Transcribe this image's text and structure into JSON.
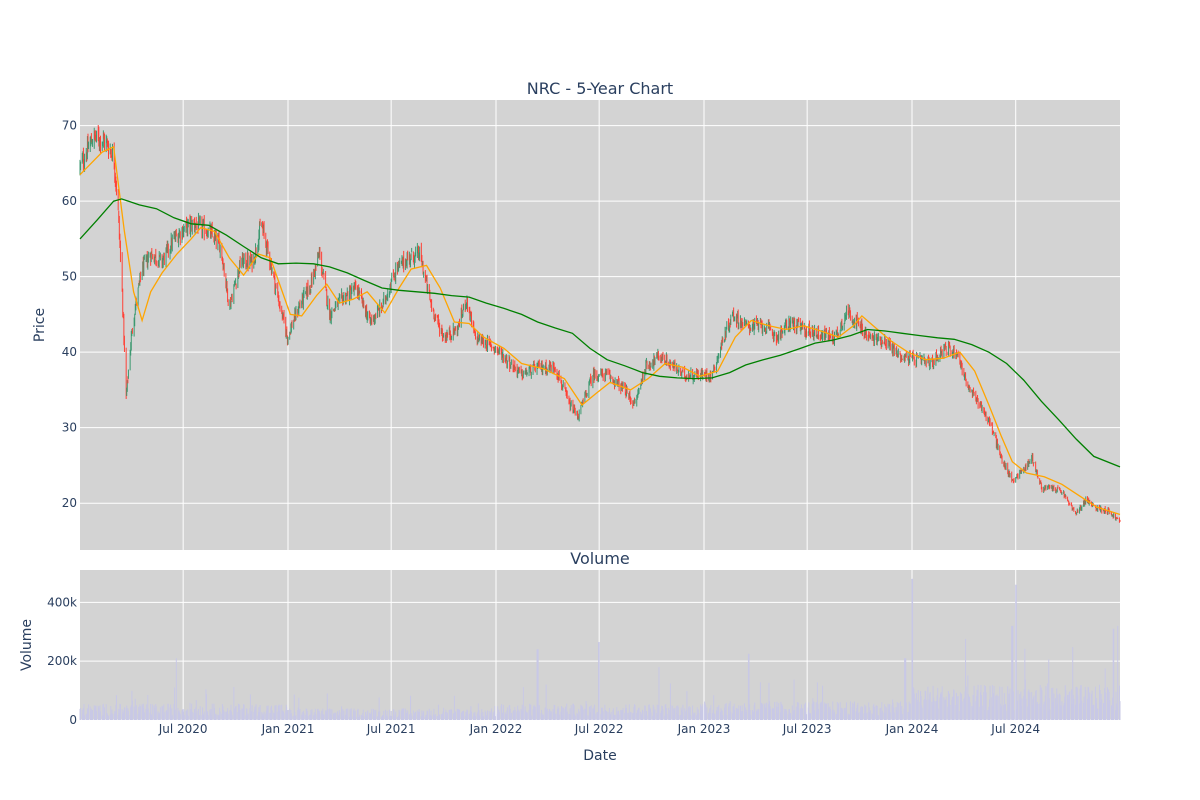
{
  "chart_data": [
    {
      "type": "candlestick",
      "title": "NRC - 5-Year Chart",
      "ylabel": "Price",
      "ylim": [
        13.8,
        73.4
      ],
      "yticks": [
        "20",
        "30",
        "40",
        "50",
        "60",
        "70"
      ],
      "grid": true,
      "colors": {
        "background": "#d3d3d3",
        "up": "#3d9970",
        "down": "#ff4136",
        "ma_short": "#ffa500",
        "ma_long": "#008000"
      },
      "price_path": [
        [
          "2020-01-02",
          64.5
        ],
        [
          "2020-01-25",
          68.5
        ],
        [
          "2020-02-15",
          68.0
        ],
        [
          "2020-03-01",
          66.0
        ],
        [
          "2020-03-08",
          60.0
        ],
        [
          "2020-03-16",
          48.0
        ],
        [
          "2020-03-23",
          34.0
        ],
        [
          "2020-04-01",
          42.0
        ],
        [
          "2020-04-08",
          46.0
        ],
        [
          "2020-04-20",
          51.0
        ],
        [
          "2020-05-05",
          53.0
        ],
        [
          "2020-05-25",
          52.0
        ],
        [
          "2020-06-15",
          55.0
        ],
        [
          "2020-07-05",
          56.5
        ],
        [
          "2020-07-20",
          57.0
        ],
        [
          "2020-08-15",
          56.0
        ],
        [
          "2020-09-05",
          54.0
        ],
        [
          "2020-09-20",
          46.0
        ],
        [
          "2020-10-10",
          52.0
        ],
        [
          "2020-11-01",
          52.0
        ],
        [
          "2020-11-15",
          57.0
        ],
        [
          "2020-12-01",
          52.0
        ],
        [
          "2020-12-15",
          47.0
        ],
        [
          "2020-12-31",
          42.0
        ],
        [
          "2021-01-20",
          46.0
        ],
        [
          "2021-02-10",
          49.0
        ],
        [
          "2021-02-25",
          53.0
        ],
        [
          "2021-03-15",
          45.0
        ],
        [
          "2021-04-05",
          47.0
        ],
        [
          "2021-05-01",
          48.5
        ],
        [
          "2021-05-25",
          44.0
        ],
        [
          "2021-06-15",
          46.0
        ],
        [
          "2021-07-10",
          51.0
        ],
        [
          "2021-08-01",
          52.5
        ],
        [
          "2021-08-20",
          53.0
        ],
        [
          "2021-09-10",
          46.0
        ],
        [
          "2021-10-01",
          42.0
        ],
        [
          "2021-10-25",
          43.0
        ],
        [
          "2021-11-10",
          47.0
        ],
        [
          "2021-11-25",
          42.0
        ],
        [
          "2022-01-01",
          40.5
        ],
        [
          "2022-01-20",
          39.0
        ],
        [
          "2022-02-15",
          37.0
        ],
        [
          "2022-03-15",
          38.0
        ],
        [
          "2022-04-15",
          38.0
        ],
        [
          "2022-05-10",
          33.0
        ],
        [
          "2022-05-25",
          31.5
        ],
        [
          "2022-06-20",
          37.0
        ],
        [
          "2022-07-15",
          37.0
        ],
        [
          "2022-08-15",
          35.0
        ],
        [
          "2022-09-01",
          33.0
        ],
        [
          "2022-09-20",
          38.0
        ],
        [
          "2022-10-15",
          39.5
        ],
        [
          "2022-11-10",
          38.0
        ],
        [
          "2022-11-25",
          37.0
        ],
        [
          "2022-12-15",
          37.0
        ],
        [
          "2023-01-15",
          37.0
        ],
        [
          "2023-02-05",
          42.0
        ],
        [
          "2023-02-20",
          45.0
        ],
        [
          "2023-03-15",
          43.5
        ],
        [
          "2023-04-15",
          43.5
        ],
        [
          "2023-05-10",
          42.0
        ],
        [
          "2023-06-01",
          44.0
        ],
        [
          "2023-06-25",
          43.0
        ],
        [
          "2023-07-20",
          42.5
        ],
        [
          "2023-08-20",
          42.0
        ],
        [
          "2023-09-10",
          45.5
        ],
        [
          "2023-09-25",
          44.0
        ],
        [
          "2023-10-15",
          42.0
        ],
        [
          "2023-11-15",
          41.5
        ],
        [
          "2023-12-10",
          39.5
        ],
        [
          "2024-01-10",
          39.0
        ],
        [
          "2024-02-05",
          38.5
        ],
        [
          "2024-02-25",
          40.5
        ],
        [
          "2024-03-20",
          40.0
        ],
        [
          "2024-04-10",
          35.0
        ],
        [
          "2024-05-01",
          33.0
        ],
        [
          "2024-05-20",
          30.0
        ],
        [
          "2024-06-05",
          26.0
        ],
        [
          "2024-06-25",
          23.0
        ],
        [
          "2024-07-15",
          24.5
        ],
        [
          "2024-07-30",
          26.0
        ],
        [
          "2024-08-15",
          22.0
        ],
        [
          "2024-09-05",
          22.0
        ],
        [
          "2024-09-20",
          21.5
        ],
        [
          "2024-10-15",
          18.5
        ],
        [
          "2024-11-01",
          20.5
        ],
        [
          "2024-11-15",
          19.5
        ],
        [
          "2024-12-10",
          19.0
        ],
        [
          "2024-12-31",
          17.5
        ]
      ],
      "series": [
        {
          "type": "moving-average-short",
          "color": "#ffa500",
          "points": [
            [
              "2020-01-02",
              63.5
            ],
            [
              "2020-02-10",
              66.5
            ],
            [
              "2020-03-01",
              67.2
            ],
            [
              "2020-03-20",
              56.0
            ],
            [
              "2020-04-05",
              48.0
            ],
            [
              "2020-04-20",
              44.2
            ],
            [
              "2020-05-05",
              48.0
            ],
            [
              "2020-05-25",
              50.5
            ],
            [
              "2020-06-20",
              53.0
            ],
            [
              "2020-07-15",
              55.0
            ],
            [
              "2020-08-01",
              56.5
            ],
            [
              "2020-08-25",
              56.0
            ],
            [
              "2020-09-20",
              52.5
            ],
            [
              "2020-10-15",
              50.2
            ],
            [
              "2020-11-10",
              53.0
            ],
            [
              "2020-12-01",
              52.5
            ],
            [
              "2021-01-05",
              45.0
            ],
            [
              "2021-01-25",
              44.8
            ],
            [
              "2021-02-20",
              47.5
            ],
            [
              "2021-03-10",
              49.0
            ],
            [
              "2021-04-01",
              46.5
            ],
            [
              "2021-04-25",
              47.0
            ],
            [
              "2021-05-20",
              48.0
            ],
            [
              "2021-06-20",
              45.2
            ],
            [
              "2021-07-15",
              48.5
            ],
            [
              "2021-08-05",
              51.0
            ],
            [
              "2021-09-01",
              51.5
            ],
            [
              "2021-09-25",
              48.5
            ],
            [
              "2021-10-20",
              44.0
            ],
            [
              "2021-11-15",
              43.8
            ],
            [
              "2021-12-10",
              42.0
            ],
            [
              "2022-01-15",
              40.5
            ],
            [
              "2022-02-15",
              38.5
            ],
            [
              "2022-03-25",
              37.8
            ],
            [
              "2022-05-01",
              36.5
            ],
            [
              "2022-06-01",
              33.0
            ],
            [
              "2022-06-25",
              34.5
            ],
            [
              "2022-07-20",
              36.0
            ],
            [
              "2022-08-25",
              35.0
            ],
            [
              "2022-09-25",
              36.5
            ],
            [
              "2022-10-25",
              38.5
            ],
            [
              "2022-11-25",
              38.0
            ],
            [
              "2022-12-25",
              36.8
            ],
            [
              "2023-01-25",
              37.5
            ],
            [
              "2023-02-25",
              42.0
            ],
            [
              "2023-03-25",
              44.2
            ],
            [
              "2023-04-25",
              43.5
            ],
            [
              "2023-05-25",
              43.0
            ],
            [
              "2023-06-25",
              43.5
            ],
            [
              "2023-07-25",
              42.8
            ],
            [
              "2023-08-25",
              42.0
            ],
            [
              "2023-09-20",
              43.5
            ],
            [
              "2023-10-05",
              44.8
            ],
            [
              "2023-10-25",
              43.5
            ],
            [
              "2023-11-25",
              41.5
            ],
            [
              "2023-12-25",
              40.0
            ],
            [
              "2024-01-25",
              39.0
            ],
            [
              "2024-02-25",
              39.2
            ],
            [
              "2024-03-25",
              40.0
            ],
            [
              "2024-04-20",
              37.5
            ],
            [
              "2024-05-15",
              33.0
            ],
            [
              "2024-06-05",
              29.0
            ],
            [
              "2024-06-25",
              25.5
            ],
            [
              "2024-07-20",
              24.0
            ],
            [
              "2024-08-20",
              23.5
            ],
            [
              "2024-09-20",
              22.5
            ],
            [
              "2024-10-20",
              21.0
            ],
            [
              "2024-11-20",
              19.5
            ],
            [
              "2024-12-31",
              18.5
            ]
          ]
        },
        {
          "type": "moving-average-long",
          "color": "#008000",
          "points": [
            [
              "2020-01-02",
              55.0
            ],
            [
              "2020-02-01",
              57.5
            ],
            [
              "2020-03-01",
              60.0
            ],
            [
              "2020-03-15",
              60.3
            ],
            [
              "2020-04-15",
              59.5
            ],
            [
              "2020-05-15",
              59.0
            ],
            [
              "2020-06-15",
              57.8
            ],
            [
              "2020-07-15",
              57.0
            ],
            [
              "2020-08-15",
              56.8
            ],
            [
              "2020-09-15",
              55.5
            ],
            [
              "2020-10-15",
              54.0
            ],
            [
              "2020-11-15",
              52.5
            ],
            [
              "2020-12-15",
              51.7
            ],
            [
              "2021-01-15",
              51.8
            ],
            [
              "2021-02-15",
              51.7
            ],
            [
              "2021-03-15",
              51.3
            ],
            [
              "2021-04-15",
              50.5
            ],
            [
              "2021-05-15",
              49.5
            ],
            [
              "2021-06-15",
              48.5
            ],
            [
              "2021-07-15",
              48.2
            ],
            [
              "2021-08-15",
              48.0
            ],
            [
              "2021-09-15",
              47.8
            ],
            [
              "2021-10-15",
              47.5
            ],
            [
              "2021-11-15",
              47.3
            ],
            [
              "2021-12-15",
              46.5
            ],
            [
              "2022-01-15",
              45.8
            ],
            [
              "2022-02-15",
              45.0
            ],
            [
              "2022-03-15",
              44.0
            ],
            [
              "2022-04-15",
              43.2
            ],
            [
              "2022-05-15",
              42.5
            ],
            [
              "2022-06-15",
              40.5
            ],
            [
              "2022-07-15",
              39.0
            ],
            [
              "2022-08-15",
              38.2
            ],
            [
              "2022-09-15",
              37.3
            ],
            [
              "2022-10-15",
              36.8
            ],
            [
              "2022-11-15",
              36.6
            ],
            [
              "2022-12-15",
              36.5
            ],
            [
              "2023-01-15",
              36.6
            ],
            [
              "2023-02-15",
              37.3
            ],
            [
              "2023-03-15",
              38.3
            ],
            [
              "2023-04-15",
              39.0
            ],
            [
              "2023-05-15",
              39.6
            ],
            [
              "2023-06-15",
              40.4
            ],
            [
              "2023-07-15",
              41.2
            ],
            [
              "2023-08-15",
              41.6
            ],
            [
              "2023-09-15",
              42.2
            ],
            [
              "2023-10-15",
              43.0
            ],
            [
              "2023-11-15",
              42.8
            ],
            [
              "2023-12-15",
              42.5
            ],
            [
              "2024-01-15",
              42.2
            ],
            [
              "2024-02-15",
              41.9
            ],
            [
              "2024-03-15",
              41.7
            ],
            [
              "2024-04-15",
              41.0
            ],
            [
              "2024-05-15",
              40.0
            ],
            [
              "2024-06-15",
              38.5
            ],
            [
              "2024-07-15",
              36.3
            ],
            [
              "2024-08-15",
              33.5
            ],
            [
              "2024-09-15",
              31.0
            ],
            [
              "2024-10-15",
              28.5
            ],
            [
              "2024-11-15",
              26.2
            ],
            [
              "2024-12-31",
              24.8
            ]
          ]
        }
      ]
    },
    {
      "type": "bar",
      "title": "Volume",
      "xlabel": "Date",
      "ylabel": "Volume",
      "ylim": [
        0,
        510000
      ],
      "yticks": [
        "0",
        "200k",
        "400k"
      ],
      "color": "#c8c8e6",
      "grid": true,
      "typical_volume_by_year": [
        [
          "2020",
          35000
        ],
        [
          "2021",
          25000
        ],
        [
          "2022",
          35000
        ],
        [
          "2023",
          40000
        ],
        [
          "2024",
          75000
        ]
      ],
      "spikes": [
        [
          "2020-06-20",
          210000
        ],
        [
          "2022-03-15",
          240000
        ],
        [
          "2022-07-01",
          265000
        ],
        [
          "2022-10-15",
          180000
        ],
        [
          "2023-03-20",
          225000
        ],
        [
          "2023-12-20",
          210000
        ],
        [
          "2024-01-01",
          480000
        ],
        [
          "2024-06-25",
          320000
        ],
        [
          "2024-07-01",
          460000
        ],
        [
          "2024-12-20",
          310000
        ],
        [
          "2024-12-28",
          320000
        ]
      ]
    }
  ],
  "x_axis": {
    "range": [
      "2020-01-02",
      "2024-12-31"
    ],
    "ticks": [
      {
        "date": "2020-07-01",
        "label": "Jul 2020"
      },
      {
        "date": "2021-01-01",
        "label": "Jan 2021"
      },
      {
        "date": "2021-07-01",
        "label": "Jul 2021"
      },
      {
        "date": "2022-01-01",
        "label": "Jan 2022"
      },
      {
        "date": "2022-07-01",
        "label": "Jul 2022"
      },
      {
        "date": "2023-01-01",
        "label": "Jan 2023"
      },
      {
        "date": "2023-07-01",
        "label": "Jul 2023"
      },
      {
        "date": "2024-01-01",
        "label": "Jan 2024"
      },
      {
        "date": "2024-07-01",
        "label": "Jul 2024"
      }
    ]
  }
}
